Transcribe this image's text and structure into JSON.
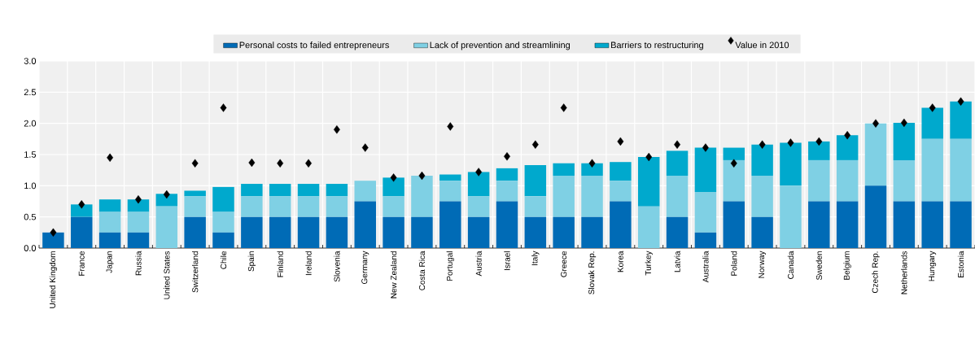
{
  "chart_data": {
    "type": "bar",
    "stacked": true,
    "categories": [
      "United Kingdom",
      "France",
      "Japan",
      "Russia",
      "United States",
      "Switzerland",
      "Chile",
      "Spain",
      "Finland",
      "Ireland",
      "Slovenia",
      "Germany",
      "New Zealand",
      "Costa Rica",
      "Portugal",
      "Austria",
      "Israel",
      "Italy",
      "Greece",
      "Slovak Rep.",
      "Korea",
      "Turkey",
      "Latvia",
      "Australia",
      "Poland",
      "Norway",
      "Canada",
      "Sweden",
      "Belgium",
      "Czech Rep.",
      "Netherlands",
      "Hungary",
      "Estonia"
    ],
    "series": [
      {
        "name": "Personal costs to failed entrepreneurs",
        "color": "#006bb6",
        "values": [
          0.25,
          0.5,
          0.25,
          0.25,
          0,
          0.5,
          0.25,
          0.5,
          0.5,
          0.5,
          0.5,
          0.75,
          0.5,
          0.5,
          0.75,
          0.5,
          0.75,
          0.5,
          0.5,
          0.5,
          0.75,
          0,
          0.5,
          0.25,
          0.75,
          0.5,
          0,
          0.75,
          0.75,
          1.0,
          0.75,
          0.75,
          0.75
        ]
      },
      {
        "name": "Lack of prevention and streamlining",
        "color": "#7fd0e4",
        "values": [
          0,
          0,
          0.33,
          0.33,
          0.67,
          0.33,
          0.33,
          0.33,
          0.33,
          0.33,
          0.33,
          0.33,
          0.33,
          0.66,
          0.33,
          0.33,
          0.33,
          0.33,
          0.66,
          0.66,
          0.33,
          0.67,
          0.66,
          0.65,
          0.66,
          0.66,
          1.0,
          0.66,
          0.66,
          1.0,
          0.66,
          1.0,
          1.0
        ]
      },
      {
        "name": "Barriers to restructuring",
        "color": "#00a9cd",
        "values": [
          0,
          0.2,
          0.2,
          0.2,
          0.2,
          0.09,
          0.4,
          0.2,
          0.2,
          0.2,
          0.2,
          0,
          0.3,
          0,
          0.1,
          0.39,
          0.2,
          0.5,
          0.2,
          0.2,
          0.3,
          0.79,
          0.4,
          0.71,
          0.2,
          0.5,
          0.69,
          0.3,
          0.4,
          0,
          0.6,
          0.5,
          0.6
        ]
      },
      {
        "name": "Value in 2010",
        "type": "scatter",
        "marker": "diamond",
        "color": "#000000",
        "values": [
          0.25,
          0.7,
          1.45,
          0.78,
          0.86,
          1.36,
          2.25,
          1.37,
          1.36,
          1.36,
          1.9,
          1.61,
          1.13,
          1.16,
          1.95,
          1.22,
          1.47,
          1.66,
          2.25,
          1.36,
          1.71,
          1.46,
          1.66,
          1.61,
          1.36,
          1.66,
          1.69,
          1.71,
          1.81,
          2.0,
          2.01,
          2.25,
          2.35
        ]
      }
    ],
    "ylim": [
      0,
      3
    ],
    "yticks": [
      {
        "value": 0,
        "label": "0.0"
      },
      {
        "value": 0.5,
        "label": "0.5"
      },
      {
        "value": 1,
        "label": "1.0"
      },
      {
        "value": 1.5,
        "label": "1.5"
      },
      {
        "value": 2,
        "label": "2.0"
      },
      {
        "value": 2.5,
        "label": "2.5"
      },
      {
        "value": 3,
        "label": "3.0"
      }
    ],
    "grid": true,
    "legend": "top"
  }
}
